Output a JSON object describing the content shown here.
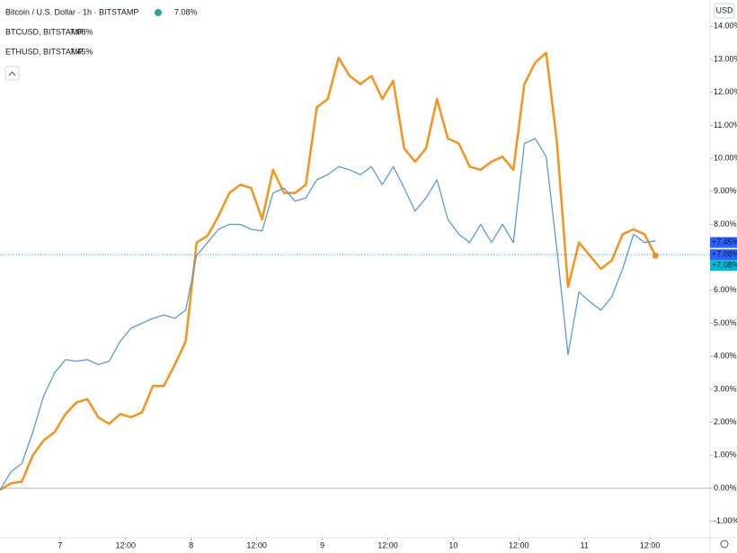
{
  "chart_data": {
    "type": "line",
    "title": "Bitcoin / U.S. Dollar · 1h · BITSTAMP",
    "title_value": "7.08%",
    "currency": "USD",
    "x": [
      -11,
      -9,
      -7,
      -5,
      -3,
      -1,
      1,
      3,
      5,
      7,
      9,
      11,
      13,
      15,
      17,
      19,
      21,
      23,
      25,
      27,
      29,
      31,
      33,
      35,
      37,
      39,
      41,
      43,
      45,
      47,
      49,
      51,
      53,
      55,
      57,
      59,
      61,
      63,
      65,
      67,
      69,
      71,
      73,
      75,
      77,
      79,
      81,
      83,
      85,
      87,
      89,
      91,
      93,
      95,
      97,
      99,
      101,
      103,
      105,
      107,
      109
    ],
    "series": [
      {
        "name": "BTCUSD, BITSTAMP",
        "legend_value": "7.08%",
        "color": "#f7931a",
        "values": [
          -0.05,
          0.15,
          0.2,
          1.0,
          1.45,
          1.7,
          2.25,
          2.6,
          2.7,
          2.15,
          1.95,
          2.25,
          2.15,
          2.3,
          3.1,
          3.1,
          3.75,
          4.45,
          7.45,
          7.65,
          8.25,
          8.95,
          9.2,
          9.1,
          8.15,
          9.65,
          8.95,
          8.95,
          9.2,
          11.55,
          11.8,
          13.05,
          12.5,
          12.25,
          12.5,
          11.8,
          12.35,
          10.3,
          9.9,
          10.3,
          11.8,
          10.6,
          10.45,
          9.75,
          9.65,
          9.9,
          10.05,
          9.65,
          12.25,
          12.9,
          13.2,
          10.45,
          6.1,
          7.45,
          7.05,
          6.65,
          6.9,
          7.7,
          7.85,
          7.7,
          7.05
        ]
      },
      {
        "name": "ETHUSD, BITSTAMP",
        "legend_value": "7.45%",
        "color": "#5b9bd5",
        "values": [
          -0.05,
          0.5,
          0.75,
          1.7,
          2.8,
          3.5,
          3.9,
          3.85,
          3.9,
          3.75,
          3.85,
          4.45,
          4.85,
          5.0,
          5.15,
          5.25,
          5.15,
          5.4,
          7.05,
          7.45,
          7.85,
          8.0,
          8.0,
          7.85,
          7.8,
          8.95,
          9.1,
          8.7,
          8.8,
          9.35,
          9.5,
          9.75,
          9.65,
          9.5,
          9.75,
          9.2,
          9.75,
          9.1,
          8.4,
          8.8,
          9.35,
          8.15,
          7.7,
          7.45,
          8.0,
          7.45,
          8.0,
          7.45,
          10.45,
          10.6,
          10.05,
          7.2,
          4.05,
          5.95,
          5.65,
          5.4,
          5.8,
          6.65,
          7.7,
          7.45,
          7.5
        ]
      }
    ],
    "price_labels": [
      {
        "value": 7.45,
        "label": "+7.45%",
        "color": "#2962ff"
      },
      {
        "value": 7.08,
        "label": "+7.08%",
        "color": "#2962ff"
      },
      {
        "value": 7.08,
        "label": "+7.08%",
        "color": "#00bcd4"
      }
    ],
    "xlim": [
      -11,
      119
    ],
    "xticks": [
      {
        "value": 0,
        "label": "7"
      },
      {
        "value": 12,
        "label": "12:00"
      },
      {
        "value": 24,
        "label": "8"
      },
      {
        "value": 36,
        "label": "12:00"
      },
      {
        "value": 48,
        "label": "9"
      },
      {
        "value": 60,
        "label": "12:00"
      },
      {
        "value": 72,
        "label": "10"
      },
      {
        "value": 84,
        "label": "12:00"
      },
      {
        "value": 96,
        "label": "11"
      },
      {
        "value": 108,
        "label": "12:00"
      }
    ],
    "ylim": [
      -1.5,
      14.8
    ],
    "yticks": [
      {
        "value": -1,
        "label": "-1.00%"
      },
      {
        "value": 0,
        "label": "0.00%"
      },
      {
        "value": 1,
        "label": "1.00%"
      },
      {
        "value": 2,
        "label": "2.00%"
      },
      {
        "value": 3,
        "label": "3.00%"
      },
      {
        "value": 4,
        "label": "4.00%"
      },
      {
        "value": 5,
        "label": "5.00%"
      },
      {
        "value": 6,
        "label": "6.00%"
      },
      {
        "value": 7,
        "label": "7.00%"
      },
      {
        "value": 8,
        "label": "8.00%"
      },
      {
        "value": 9,
        "label": "9.00%"
      },
      {
        "value": 10,
        "label": "10.00%"
      },
      {
        "value": 11,
        "label": "11.00%"
      },
      {
        "value": 12,
        "label": "12.00%"
      },
      {
        "value": 13,
        "label": "13.00%"
      },
      {
        "value": 14,
        "label": "14.00%"
      }
    ],
    "baseline": 0,
    "grid": false
  }
}
